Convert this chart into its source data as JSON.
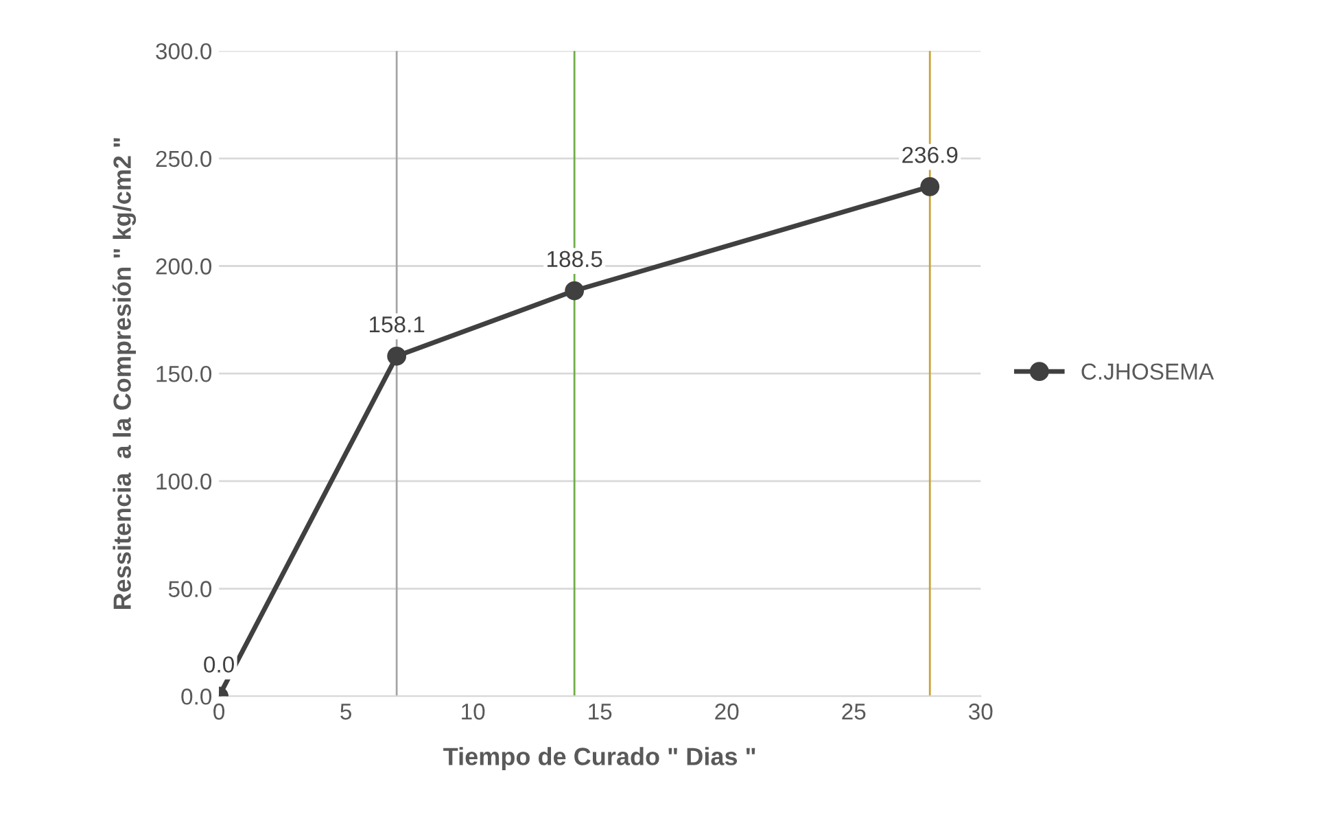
{
  "chart_data": {
    "type": "line",
    "xlabel": "Tiempo de Curado \" Dias \"",
    "ylabel": "Ressitencia  a la Compresión \" kg/cm2 \"",
    "x": [
      0,
      7,
      14,
      28
    ],
    "series": [
      {
        "name": "C.JHOSEMA",
        "color": "#404040",
        "values": [
          0.0,
          158.1,
          188.5,
          236.9
        ],
        "value_labels": [
          "0.0",
          "158.1",
          "188.5",
          "236.9"
        ]
      }
    ],
    "xlim": [
      0,
      30
    ],
    "xticks": [
      0,
      5,
      10,
      15,
      20,
      25,
      30
    ],
    "ylim": [
      0,
      300
    ],
    "yticks": [
      {
        "value": 0,
        "label": "0.0"
      },
      {
        "value": 50,
        "label": "50.0"
      },
      {
        "value": 100,
        "label": "100.0"
      },
      {
        "value": 150,
        "label": "150.0"
      },
      {
        "value": 200,
        "label": "200.0"
      },
      {
        "value": 250,
        "label": "250.0"
      },
      {
        "value": 300,
        "label": "300.0"
      }
    ],
    "ref_lines": [
      {
        "axis": "x",
        "value": 7,
        "color": "#a5a5a5"
      },
      {
        "axis": "x",
        "value": 14,
        "color": "#70ad47"
      },
      {
        "axis": "x",
        "value": 28,
        "color": "#c9a23a"
      }
    ],
    "grid": "y",
    "legend": "right",
    "marker": "circle",
    "line_style": "solid"
  }
}
